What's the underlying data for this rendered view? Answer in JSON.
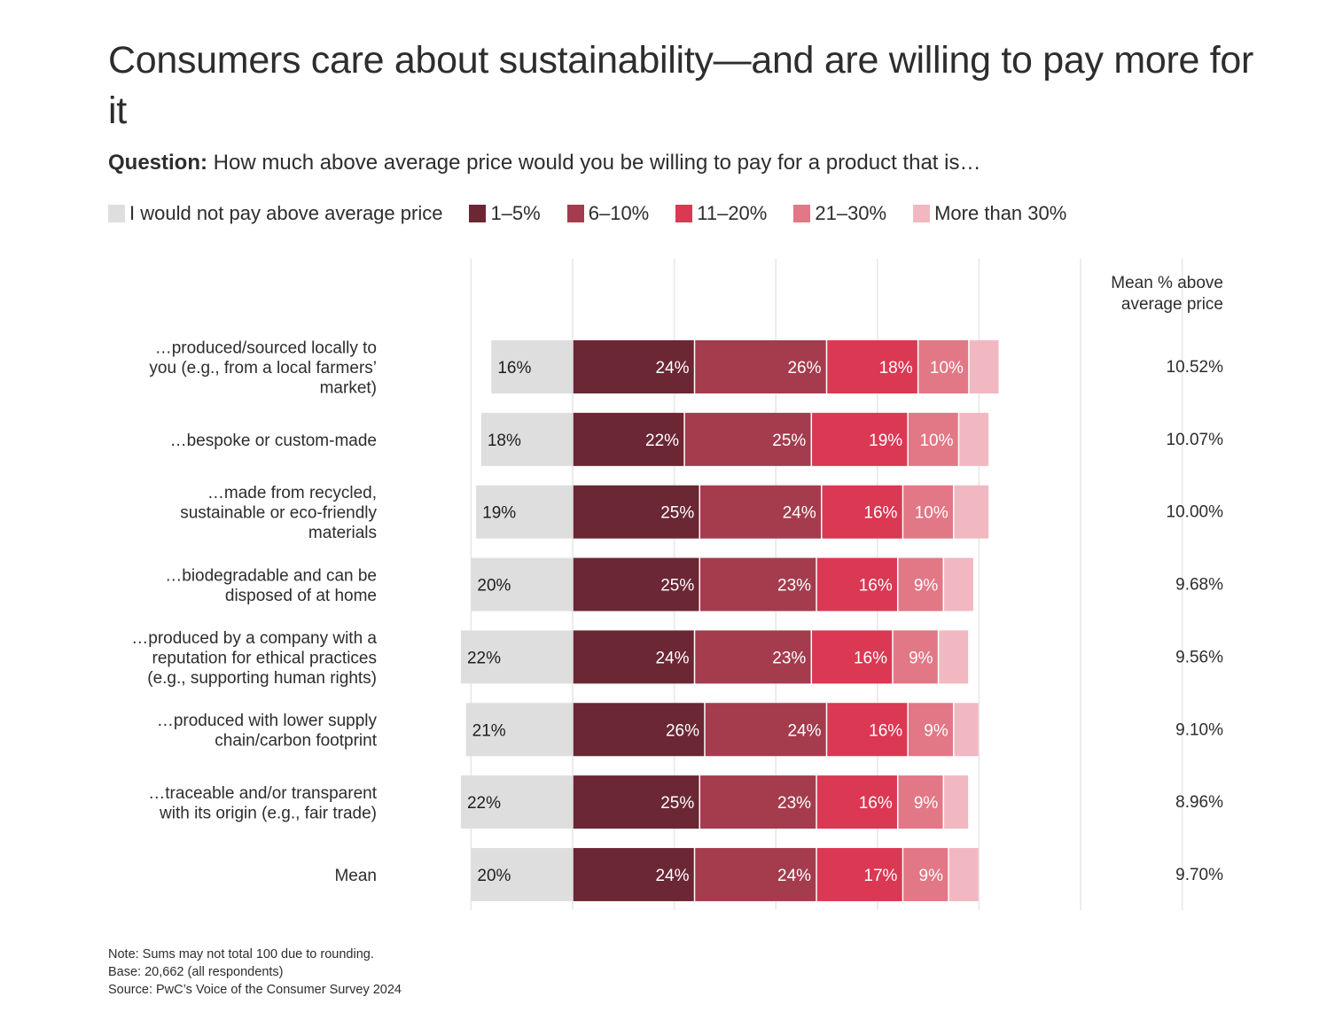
{
  "title": "Consumers care about sustainability—and are willing to pay more for it",
  "subtitle": {
    "prefix": "Question:",
    "text": "How much above average price would you be willing to pay for a product that is…"
  },
  "mean_column_header": [
    "Mean % above",
    "average price"
  ],
  "notes": [
    "Note: Sums may not total 100 due to rounding.",
    "Base: 20,662 (all respondents)",
    "Source: PwC’s Voice of the Consumer Survey 2024"
  ],
  "chart_data": {
    "type": "bar",
    "orientation": "horizontal",
    "stacked": true,
    "diverging": true,
    "grid": true,
    "legend_position": "top",
    "categories": [
      [
        "…produced/sourced locally to",
        "you (e.g., from a local farmers’",
        "market)"
      ],
      [
        "…bespoke or custom-made"
      ],
      [
        "…made from recycled,",
        "sustainable or eco-friendly",
        "materials"
      ],
      [
        "…biodegradable and can be",
        "disposed of at home"
      ],
      [
        "…produced by a company with a",
        "reputation for ethical practices",
        "(e.g., supporting human rights)"
      ],
      [
        "…produced with lower supply",
        "chain/carbon footprint"
      ],
      [
        "…traceable and/or transparent",
        "with its origin (e.g., fair trade)"
      ],
      [
        "Mean"
      ]
    ],
    "series": [
      {
        "name": "I would not pay above average price",
        "color": "#dedede",
        "values": [
          16,
          18,
          19,
          20,
          22,
          21,
          22,
          20
        ],
        "labeled": true
      },
      {
        "name": "1–5%",
        "color": "#6b2734",
        "values": [
          24,
          22,
          25,
          25,
          24,
          26,
          25,
          24
        ],
        "labeled": true
      },
      {
        "name": "6–10%",
        "color": "#a43c4e",
        "values": [
          26,
          25,
          24,
          23,
          23,
          24,
          23,
          24
        ],
        "labeled": true
      },
      {
        "name": "11–20%",
        "color": "#da3853",
        "values": [
          18,
          19,
          16,
          16,
          16,
          16,
          16,
          17
        ],
        "labeled": true
      },
      {
        "name": "21–30%",
        "color": "#e27786",
        "values": [
          10,
          10,
          10,
          9,
          9,
          9,
          9,
          9
        ],
        "labeled": true
      },
      {
        "name": "More than 30%",
        "color": "#f1b8c2",
        "values": [
          6,
          6,
          7,
          6,
          6,
          5,
          5,
          6
        ],
        "labeled": false
      }
    ],
    "mean_above_price": [
      "10.52%",
      "10.07%",
      "10.00%",
      "9.68%",
      "9.56%",
      "9.10%",
      "8.96%",
      "9.70%"
    ],
    "xlim": [
      -20,
      120
    ]
  }
}
